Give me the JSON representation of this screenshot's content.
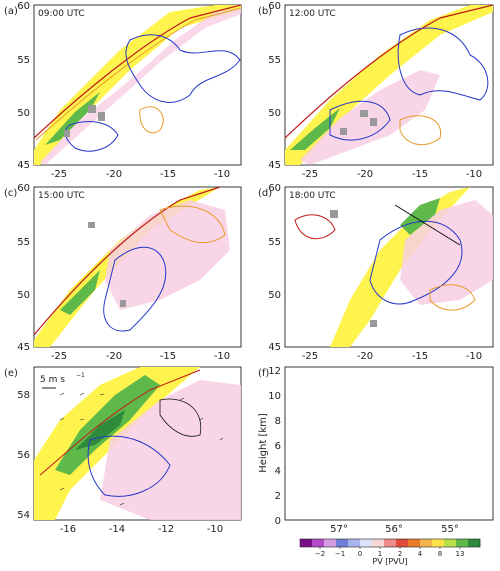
{
  "panels": {
    "a": {
      "label": "(a)",
      "time": "09:00 UTC",
      "x_ticks": [
        "-25",
        "-20",
        "-15",
        "-10"
      ],
      "y_ticks": [
        "60",
        "55",
        "50",
        "45"
      ]
    },
    "b": {
      "label": "(b)",
      "time": "12:00 UTC",
      "x_ticks": [
        "-25",
        "-20",
        "-15",
        "-10"
      ],
      "y_ticks": [
        "60",
        "55",
        "50",
        "45"
      ]
    },
    "c": {
      "label": "(c)",
      "time": "15:00 UTC",
      "x_ticks": [
        "-25",
        "-20",
        "-15",
        "-10"
      ],
      "y_ticks": [
        "60",
        "55",
        "50",
        "45"
      ]
    },
    "d": {
      "label": "(d)",
      "time": "18:00 UTC",
      "x_ticks": [
        "-25",
        "-20",
        "-15",
        "-10"
      ],
      "y_ticks": [
        "60",
        "55",
        "50",
        "45"
      ]
    },
    "e": {
      "label": "(e)",
      "wind_ref": "5 m s",
      "x_ticks": [
        "-16",
        "-14",
        "-12",
        "-10"
      ],
      "y_ticks": [
        "58",
        "56",
        "54"
      ]
    },
    "f": {
      "label": "(f)",
      "ylabel": "Height [km]",
      "y_ticks": [
        "12",
        "10",
        "8",
        "6",
        "4",
        "2",
        "0"
      ],
      "x_ticks": [
        "57°",
        "56°",
        "55°"
      ]
    }
  },
  "colorbar": {
    "label": "PV [PVU]",
    "ticks": [
      "−2",
      "−1",
      "0",
      "1",
      "2",
      "4",
      "8",
      "13"
    ],
    "colors": [
      "#7b0f8a",
      "#b24ac8",
      "#d59ee3",
      "#6f7fd6",
      "#aab4ee",
      "#dfe3f7",
      "#f6d6d6",
      "#f08c8c",
      "#e04a3a",
      "#e87a28",
      "#f4b54d",
      "#ffe24a",
      "#b7e04b",
      "#5fb84a",
      "#2f8a3b"
    ]
  }
}
